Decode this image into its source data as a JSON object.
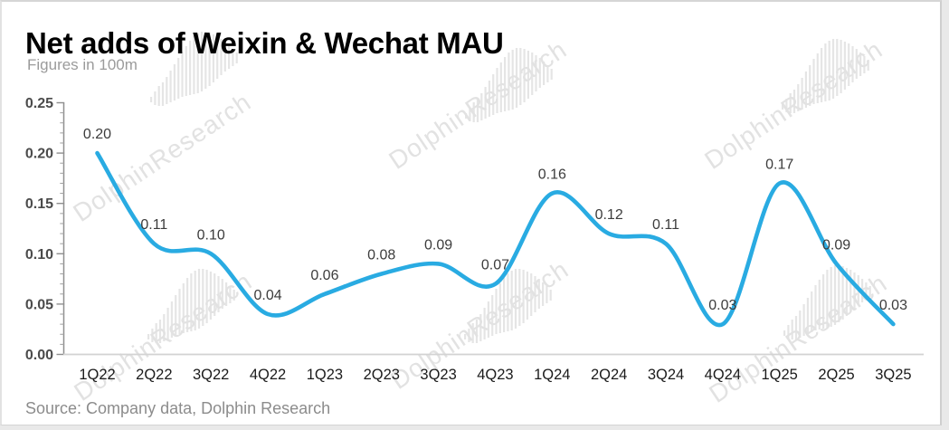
{
  "header": {
    "title": "Net adds of Weixin & Wechat MAU",
    "subtitle": "Figures in 100m"
  },
  "footer": {
    "source": "Source: Company data, Dolphin Research"
  },
  "watermark": {
    "text": "DolphinResearch",
    "icon": "dolphin-bars-logo"
  },
  "colors": {
    "line": "#29abe2",
    "data_label": "#3c3c3c",
    "y_axis_label": "#4b4b4b",
    "x_axis_label": "#1b1b1b",
    "axis": "#8f8f8f",
    "baseline": "#d3d3d3",
    "watermark": "#e2e2e2"
  },
  "chart_data": {
    "type": "line",
    "title": "Net adds of Weixin & Wechat MAU",
    "subtitle": "Figures in 100m",
    "categories": [
      "1Q22",
      "2Q22",
      "3Q22",
      "4Q22",
      "1Q23",
      "2Q23",
      "3Q23",
      "4Q23",
      "1Q24",
      "2Q24",
      "3Q24",
      "4Q24",
      "1Q25",
      "2Q25",
      "3Q25"
    ],
    "series": [
      {
        "name": "Net adds of Weixin & Wechat MAU",
        "values": [
          0.2,
          0.11,
          0.1,
          0.04,
          0.06,
          0.08,
          0.09,
          0.07,
          0.16,
          0.12,
          0.11,
          0.03,
          0.17,
          0.09,
          0.03
        ]
      }
    ],
    "xlabel": "",
    "ylabel": "",
    "ylim": [
      0,
      0.25
    ],
    "y_major_step": 0.05,
    "y_minor_step": 0.01,
    "y_tick_labels": [
      "0.00",
      "0.05",
      "0.10",
      "0.15",
      "0.20",
      "0.25"
    ],
    "grid": false,
    "legend": "none",
    "smooth": true,
    "data_labels_visible": true,
    "data_label_format": "0.00"
  }
}
